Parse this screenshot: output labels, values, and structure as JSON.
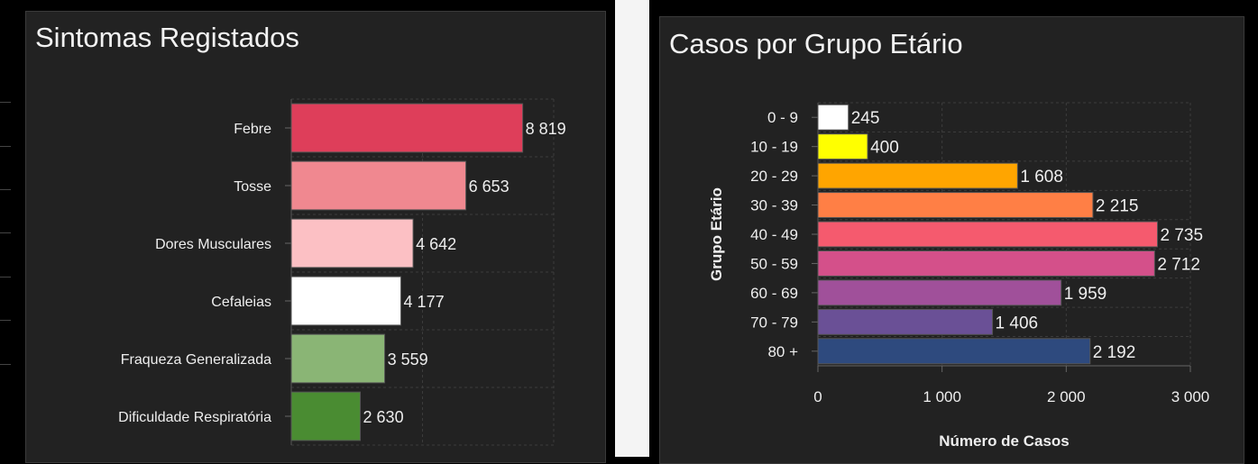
{
  "chart_data": [
    {
      "type": "bar",
      "orientation": "horizontal",
      "title": "Sintomas Registados",
      "categories": [
        "Febre",
        "Tosse",
        "Dores Musculares",
        "Cefaleias",
        "Fraqueza Generalizada",
        "Dificuldade Respiratória"
      ],
      "values": [
        8819,
        6653,
        4642,
        4177,
        3559,
        2630
      ],
      "value_labels": [
        "8 819",
        "6 653",
        "4 642",
        "4 177",
        "3 559",
        "2 630"
      ],
      "colors": [
        "#de3e5a",
        "#f08890",
        "#fcc0c4",
        "#ffffff",
        "#8ab575",
        "#4a8c32"
      ],
      "xlim": [
        0,
        10000
      ],
      "xlabel": "",
      "ylabel": "",
      "grid": true
    },
    {
      "type": "bar",
      "orientation": "horizontal",
      "title": "Casos por Grupo Etário",
      "categories": [
        "0 - 9",
        "10 - 19",
        "20 - 29",
        "30 - 39",
        "40 - 49",
        "50 - 59",
        "60 - 69",
        "70 - 79",
        "80 +"
      ],
      "values": [
        245,
        400,
        1608,
        2215,
        2735,
        2712,
        1959,
        1406,
        2192
      ],
      "value_labels": [
        "245",
        "400",
        "1 608",
        "2 215",
        "2 735",
        "2 712",
        "1 959",
        "1 406",
        "2 192"
      ],
      "colors": [
        "#ffffff",
        "#ffff00",
        "#ffa500",
        "#ff7f45",
        "#f55a6e",
        "#d4508a",
        "#a0509a",
        "#6a5096",
        "#2e4a7e"
      ],
      "xlim": [
        0,
        3000
      ],
      "xticks": [
        0,
        1000,
        2000,
        3000
      ],
      "xtick_labels": [
        "0",
        "1 000",
        "2 000",
        "3 000"
      ],
      "xlabel": "Número de Casos",
      "ylabel": "Grupo Etário",
      "grid": true
    }
  ]
}
